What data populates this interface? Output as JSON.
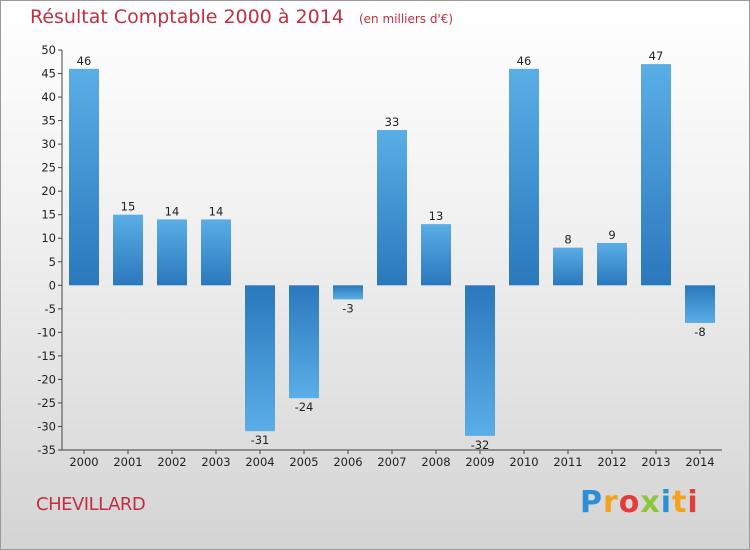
{
  "header": {
    "title": "Résultat Comptable 2000 à 2014",
    "subtitle": "(en milliers d'€)"
  },
  "commune": "CHEVILLARD",
  "logo": {
    "text": "Proxiti",
    "letters": [
      "P",
      "r",
      "o",
      "x",
      "i",
      "t",
      "i"
    ],
    "colors": [
      "#2b8fd6",
      "#f3a21f",
      "#e43b3b",
      "#8cc63e",
      "#2b8fd6",
      "#f3a21f",
      "#e43b3b"
    ]
  },
  "chart_data": {
    "type": "bar",
    "title": "Résultat Comptable 2000 à 2014",
    "ylabel": "(en milliers d'€)",
    "xlabel": "",
    "categories": [
      "2000",
      "2001",
      "2002",
      "2003",
      "2004",
      "2005",
      "2006",
      "2007",
      "2008",
      "2009",
      "2010",
      "2011",
      "2012",
      "2013",
      "2014"
    ],
    "values": [
      46,
      15,
      14,
      14,
      -31,
      -24,
      -3,
      33,
      13,
      -32,
      46,
      8,
      9,
      47,
      -8
    ],
    "ylim": [
      -35,
      50
    ],
    "yticks": [
      50,
      45,
      40,
      35,
      30,
      25,
      20,
      15,
      10,
      5,
      0,
      -5,
      -10,
      -15,
      -20,
      -25,
      -30,
      -35
    ],
    "grid": false,
    "bar_color_dark": "#2a78bd",
    "bar_color_light": "#5aaee6"
  }
}
